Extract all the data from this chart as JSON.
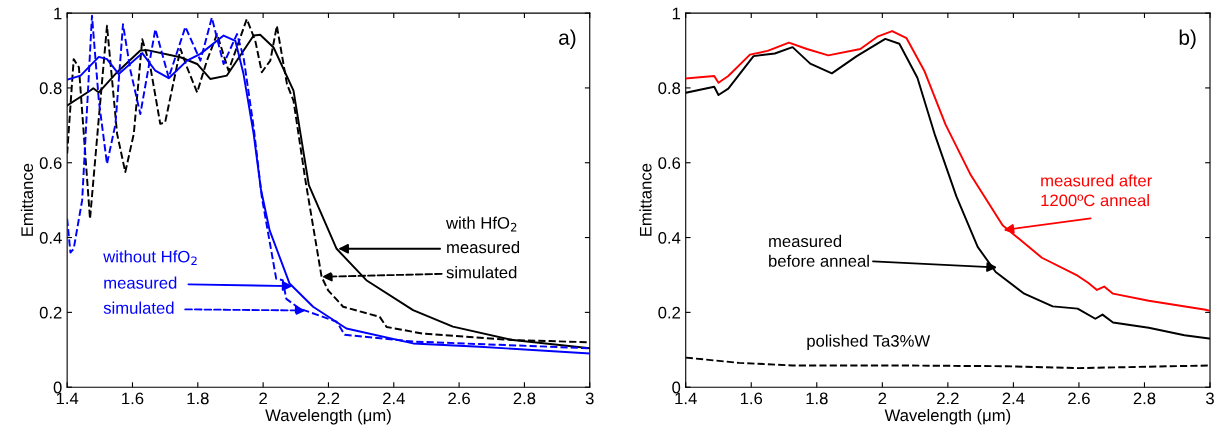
{
  "chart_data": [
    {
      "type": "line",
      "xlabel": "Wavelength (μm)",
      "ylabel": "Emittance",
      "xlim": [
        1.4,
        3
      ],
      "ylim": [
        0,
        1
      ],
      "xticks": [
        1.4,
        1.6,
        1.8,
        2,
        2.2,
        2.4,
        2.6,
        2.8,
        3
      ],
      "yticks": [
        0,
        0.2,
        0.4,
        0.6,
        0.8,
        1
      ],
      "series": [
        {
          "color": "#000000",
          "line_style": "dashed",
          "x": [
            1.4,
            1.42,
            1.436,
            1.47,
            1.497,
            1.522,
            1.553,
            1.578,
            1.604,
            1.63,
            1.655,
            1.685,
            1.7,
            1.747,
            1.767,
            1.798,
            1.828,
            1.859,
            1.894,
            1.95,
            1.976,
            1.996,
            2.022,
            2.042,
            2.073,
            2.093,
            2.13,
            2.179,
            2.199,
            2.245,
            2.357,
            2.378,
            2.49,
            2.765,
            3
          ],
          "values": [
            0.624,
            0.877,
            0.855,
            0.45,
            0.72,
            0.966,
            0.677,
            0.575,
            0.677,
            0.93,
            0.855,
            0.704,
            0.708,
            0.904,
            0.855,
            0.788,
            0.873,
            0.944,
            0.846,
            0.984,
            0.926,
            0.842,
            0.873,
            0.966,
            0.81,
            0.766,
            0.55,
            0.295,
            0.259,
            0.215,
            0.188,
            0.161,
            0.143,
            0.126,
            0.12
          ]
        },
        {
          "color": "#000000",
          "line_style": "solid",
          "x": [
            1.4,
            1.471,
            1.48,
            1.497,
            1.553,
            1.624,
            1.645,
            1.747,
            1.798,
            1.838,
            1.889,
            1.971,
            1.991,
            2.032,
            2.093,
            2.14,
            2.225,
            2.316,
            2.459,
            2.581,
            2.765,
            3
          ],
          "values": [
            0.753,
            0.793,
            0.799,
            0.788,
            0.842,
            0.9,
            0.901,
            0.882,
            0.864,
            0.824,
            0.833,
            0.94,
            0.942,
            0.908,
            0.793,
            0.54,
            0.37,
            0.286,
            0.206,
            0.162,
            0.126,
            0.104
          ]
        },
        {
          "color": "#0000ff",
          "line_style": "dashed",
          "x": [
            1.4,
            1.41,
            1.42,
            1.446,
            1.476,
            1.497,
            1.522,
            1.548,
            1.571,
            1.594,
            1.624,
            1.67,
            1.711,
            1.762,
            1.808,
            1.843,
            1.879,
            1.92,
            1.94,
            1.971,
            1.996,
            2.04,
            2.06,
            2.071,
            2.112,
            2.225,
            2.25,
            2.459,
            3
          ],
          "values": [
            0.45,
            0.36,
            0.37,
            0.5,
            0.993,
            0.766,
            0.597,
            0.704,
            0.97,
            0.846,
            0.73,
            0.957,
            0.828,
            0.963,
            0.873,
            0.988,
            0.864,
            0.944,
            0.882,
            0.695,
            0.508,
            0.29,
            0.286,
            0.236,
            0.21,
            0.175,
            0.14,
            0.122,
            0.104
          ]
        },
        {
          "color": "#0000ff",
          "line_style": "solid",
          "x": [
            1.4,
            1.441,
            1.497,
            1.522,
            1.558,
            1.63,
            1.67,
            1.711,
            1.767,
            1.808,
            1.879,
            1.915,
            1.94,
            1.971,
            1.993,
            2.02,
            2.081,
            2.153,
            2.255,
            2.459,
            2.663,
            3
          ],
          "values": [
            0.822,
            0.833,
            0.883,
            0.877,
            0.837,
            0.893,
            0.846,
            0.826,
            0.873,
            0.891,
            0.94,
            0.926,
            0.837,
            0.677,
            0.53,
            0.419,
            0.277,
            0.215,
            0.157,
            0.117,
            0.108,
            0.09
          ]
        }
      ],
      "annotations": [
        "a)",
        "with HfO$_{2}$",
        {
          "text": "measured",
          "x": 2.23,
          "y": 0.37
        },
        {
          "text": "simulated",
          "x": 2.18,
          "y": 0.295
        },
        "without HfO$_{2}$",
        {
          "text": "measured",
          "x": 2.09,
          "y": 0.27
        },
        {
          "text": "simulated",
          "x": 2.13,
          "y": 0.205
        }
      ]
    },
    {
      "type": "line",
      "xlabel": "Wavelength (μm)",
      "ylabel": "Emittance",
      "xlim": [
        1.4,
        3
      ],
      "ylim": [
        0,
        1
      ],
      "xticks": [
        1.4,
        1.6,
        1.8,
        2,
        2.2,
        2.4,
        2.6,
        2.8,
        3
      ],
      "yticks": [
        0,
        0.2,
        0.4,
        0.6,
        0.8,
        1
      ],
      "series": [
        {
          "color": "#ff0000",
          "line_style": "solid",
          "x": [
            1.4,
            1.487,
            1.5,
            1.53,
            1.596,
            1.65,
            1.715,
            1.77,
            1.835,
            1.933,
            1.987,
            2.03,
            2.074,
            2.128,
            2.193,
            2.27,
            2.367,
            2.487,
            2.596,
            2.628,
            2.655,
            2.677,
            2.704,
            2.813,
            2.987,
            3
          ],
          "values": [
            0.825,
            0.832,
            0.814,
            0.832,
            0.889,
            0.899,
            0.921,
            0.904,
            0.887,
            0.904,
            0.938,
            0.952,
            0.933,
            0.846,
            0.702,
            0.567,
            0.433,
            0.346,
            0.298,
            0.279,
            0.26,
            0.269,
            0.25,
            0.231,
            0.207,
            0.204
          ]
        },
        {
          "color": "#000000",
          "line_style": "solid",
          "x": [
            1.4,
            1.487,
            1.5,
            1.53,
            1.607,
            1.672,
            1.726,
            1.78,
            1.846,
            1.922,
            2.009,
            2.052,
            2.107,
            2.161,
            2.226,
            2.291,
            2.346,
            2.433,
            2.52,
            2.596,
            2.65,
            2.672,
            2.704,
            2.813,
            2.922,
            3
          ],
          "values": [
            0.787,
            0.803,
            0.781,
            0.798,
            0.885,
            0.892,
            0.909,
            0.865,
            0.839,
            0.885,
            0.931,
            0.918,
            0.827,
            0.673,
            0.51,
            0.375,
            0.308,
            0.25,
            0.216,
            0.21,
            0.183,
            0.194,
            0.173,
            0.159,
            0.139,
            0.13
          ]
        },
        {
          "color": "#000000",
          "line_style": "dashed",
          "x": [
            1.4,
            1.563,
            1.726,
            2.052,
            2.378,
            2.596,
            3
          ],
          "values": [
            0.079,
            0.065,
            0.058,
            0.058,
            0.056,
            0.051,
            0.058
          ]
        }
      ],
      "annotations": [
        "b)",
        {
          "text": "measured after\n1200ºC anneal",
          "x": 2.37,
          "y": 0.42
        },
        {
          "text": "measured\nbefore anneal",
          "x": 2.35,
          "y": 0.32
        },
        "polished Ta3%W"
      ]
    }
  ]
}
